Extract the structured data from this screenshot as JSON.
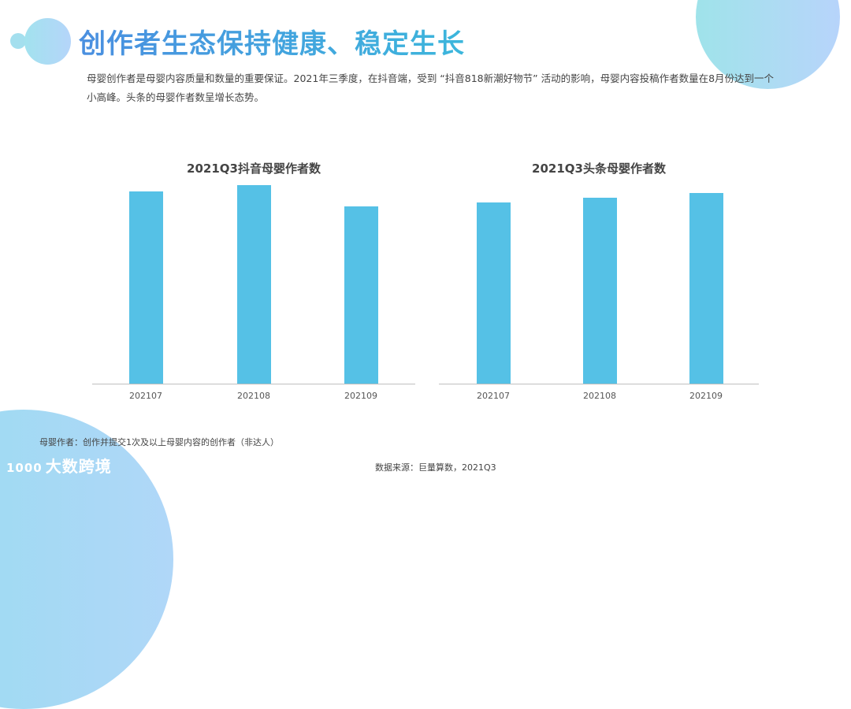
{
  "header": {
    "title": "创作者生态保持健康、稳定生长",
    "description": "母婴创作者是母婴内容质量和数量的重要保证。2021年三季度，在抖音端，受到 “抖音818新潮好物节” 活动的影响，母婴内容投稿作者数量在8月份达到一个小高峰。头条的母婴作者数呈增长态势。"
  },
  "footer": {
    "note": "母婴作者：创作并提交1次及以上母婴内容的创作者（非达人）",
    "source": "数据来源：巨量算数，2021Q3",
    "logo_mark": "1000",
    "logo_text": "大数跨境"
  },
  "colors": {
    "bar": "#55c1e6",
    "title_start": "#4a8fe0",
    "title_end": "#3cb6dc"
  },
  "chart_data": [
    {
      "type": "bar",
      "title": "2021Q3抖音母婴作者数",
      "categories": [
        "202107",
        "202108",
        "202109"
      ],
      "values": [
        244,
        252,
        225
      ],
      "xlabel": "",
      "ylabel": "",
      "note": "No y-axis shown; values are relative bar heights (px)",
      "grid": false,
      "legend": "none"
    },
    {
      "type": "bar",
      "title": "2021Q3头条母婴作者数",
      "categories": [
        "202107",
        "202108",
        "202109"
      ],
      "values": [
        230,
        236,
        242
      ],
      "xlabel": "",
      "ylabel": "",
      "note": "No y-axis shown; values are relative bar heights (px)",
      "grid": false,
      "legend": "none"
    }
  ]
}
